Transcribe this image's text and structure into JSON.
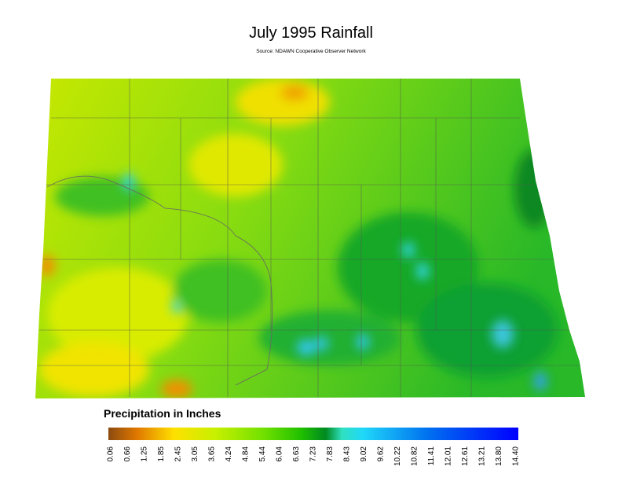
{
  "title": "July 1995 Rainfall",
  "source": "Source: NDAWN Cooperative Observer Network",
  "legend": {
    "title": "Precipitation in Inches",
    "labels": [
      "0.06",
      "0.66",
      "1.25",
      "1.85",
      "2.45",
      "3.05",
      "3.65",
      "4.24",
      "4.84",
      "5.44",
      "6.04",
      "6.63",
      "7.23",
      "7.83",
      "8.43",
      "9.02",
      "9.62",
      "10.22",
      "10.82",
      "11.41",
      "12.01",
      "12.61",
      "13.21",
      "13.80",
      "14.40"
    ]
  }
}
